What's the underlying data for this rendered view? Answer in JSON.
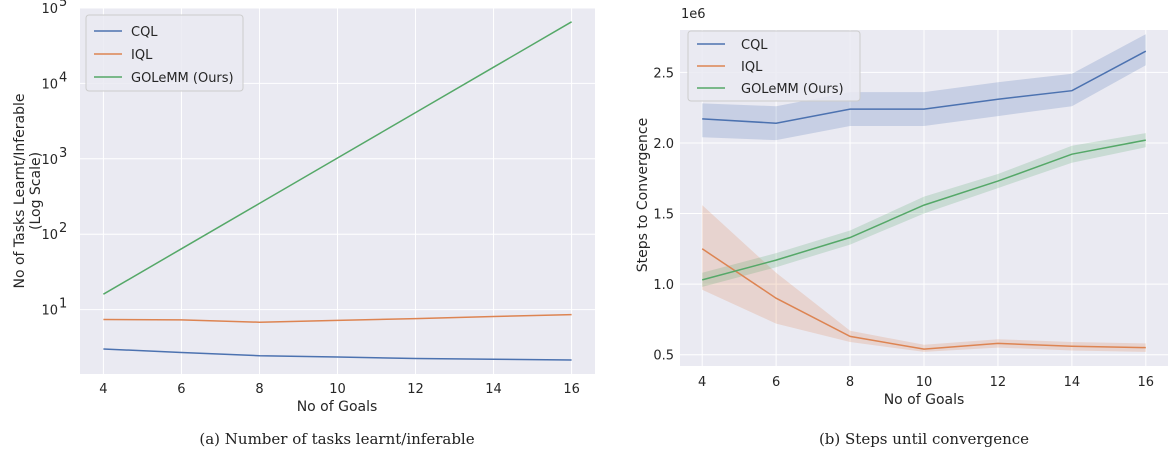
{
  "chart_data": [
    {
      "type": "line",
      "caption": "(a)  Number of tasks learnt/inferable",
      "xlabel": "No of Goals",
      "ylabel_lines": [
        "No of Tasks Learnt/Inferable",
        "(Log Scale)"
      ],
      "yscale": "log",
      "x": [
        4,
        6,
        8,
        10,
        12,
        14,
        16
      ],
      "xticks": [
        4,
        6,
        8,
        10,
        12,
        14,
        16
      ],
      "xlim": [
        3.4,
        16.6
      ],
      "ylim": [
        1.4,
        100000
      ],
      "yticks": [
        {
          "value": 10,
          "base": "10",
          "exp": "1"
        },
        {
          "value": 100,
          "base": "10",
          "exp": "2"
        },
        {
          "value": 1000,
          "base": "10",
          "exp": "3"
        },
        {
          "value": 10000,
          "base": "10",
          "exp": "4"
        },
        {
          "value": 100000,
          "base": "10",
          "exp": "5"
        }
      ],
      "grid": true,
      "legend_position": "top-left",
      "series": [
        {
          "name": "CQL",
          "color": "#4c72b0",
          "values": [
            3.0,
            2.7,
            2.45,
            2.35,
            2.25,
            2.2,
            2.15
          ]
        },
        {
          "name": "IQL",
          "color": "#dd8452",
          "values": [
            7.4,
            7.3,
            6.8,
            7.2,
            7.6,
            8.1,
            8.6
          ]
        },
        {
          "name": "GOLeMM (Ours)",
          "color": "#55a868",
          "values": [
            16,
            64,
            256,
            1024,
            4096,
            16384,
            65536
          ]
        }
      ]
    },
    {
      "type": "line",
      "caption": "(b)  Steps until convergence",
      "xlabel": "No of Goals",
      "ylabel": "Steps to Convergence",
      "y_offset_label": "1e6",
      "x": [
        4,
        6,
        8,
        10,
        12,
        14,
        16
      ],
      "xticks": [
        4,
        6,
        8,
        10,
        12,
        14,
        16
      ],
      "xlim": [
        3.4,
        16.6
      ],
      "ylim": [
        0.42,
        2.8
      ],
      "yticks": [
        {
          "value": 0.5,
          "label": "0.5"
        },
        {
          "value": 1.0,
          "label": "1.0"
        },
        {
          "value": 1.5,
          "label": "1.5"
        },
        {
          "value": 2.0,
          "label": "2.0"
        },
        {
          "value": 2.5,
          "label": "2.5"
        }
      ],
      "grid": true,
      "legend_position": "top-left",
      "series": [
        {
          "name": "CQL",
          "color": "#4c72b0",
          "values": [
            2.17,
            2.14,
            2.24,
            2.24,
            2.31,
            2.37,
            2.65
          ],
          "lower": [
            2.04,
            2.02,
            2.12,
            2.12,
            2.19,
            2.26,
            2.55
          ],
          "upper": [
            2.28,
            2.26,
            2.36,
            2.36,
            2.43,
            2.49,
            2.77
          ]
        },
        {
          "name": "IQL",
          "color": "#dd8452",
          "values": [
            1.25,
            0.9,
            0.63,
            0.54,
            0.58,
            0.56,
            0.55
          ],
          "lower": [
            0.96,
            0.72,
            0.59,
            0.52,
            0.55,
            0.53,
            0.52
          ],
          "upper": [
            1.56,
            1.08,
            0.67,
            0.57,
            0.61,
            0.59,
            0.58
          ]
        },
        {
          "name": "GOLeMM (Ours)",
          "color": "#55a868",
          "values": [
            1.03,
            1.17,
            1.33,
            1.56,
            1.73,
            1.92,
            2.02
          ],
          "lower": [
            0.98,
            1.12,
            1.28,
            1.5,
            1.68,
            1.86,
            1.97
          ],
          "upper": [
            1.08,
            1.22,
            1.38,
            1.62,
            1.78,
            1.98,
            2.07
          ]
        }
      ]
    }
  ]
}
